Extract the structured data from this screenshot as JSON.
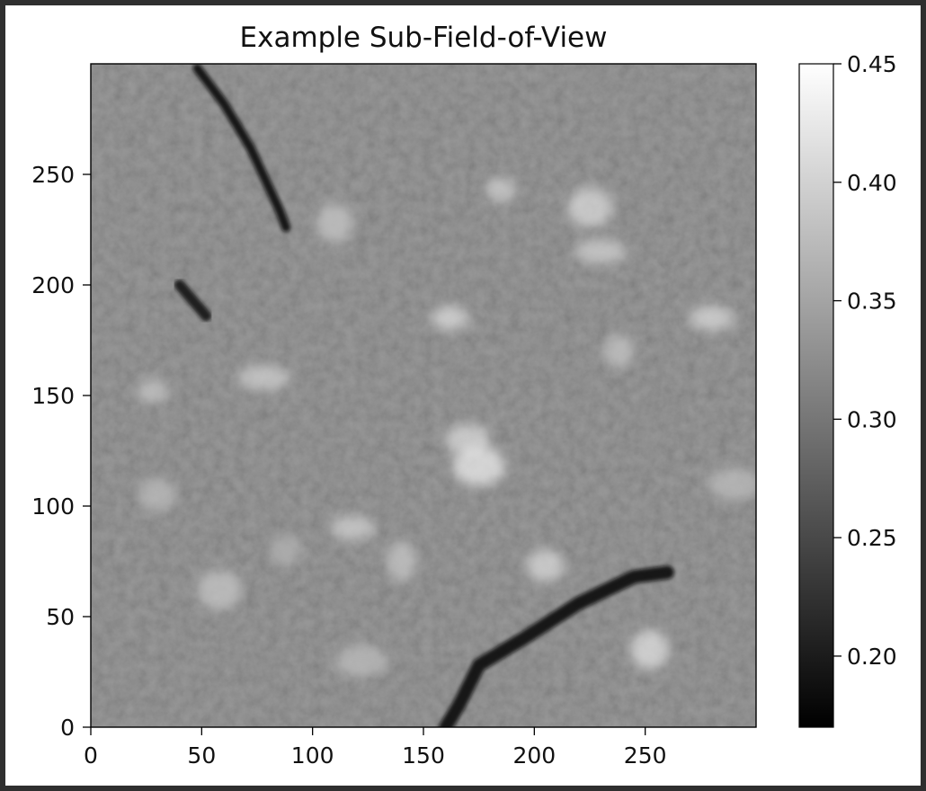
{
  "chart_data": {
    "type": "heatmap",
    "title": "Example Sub-Field-of-View",
    "xlabel": "",
    "ylabel": "",
    "xlim": [
      0,
      300
    ],
    "ylim": [
      0,
      300
    ],
    "x_ticks": [
      0,
      50,
      100,
      150,
      200,
      250
    ],
    "y_ticks": [
      0,
      50,
      100,
      150,
      200,
      250
    ],
    "colorbar": {
      "colormap": "gray",
      "range": [
        0.17,
        0.45
      ],
      "ticks": [
        0.2,
        0.25,
        0.3,
        0.35,
        0.4,
        0.45
      ],
      "tick_labels": [
        "0.20",
        "0.25",
        "0.30",
        "0.35",
        "0.40",
        "0.45"
      ]
    },
    "features": {
      "bright_points": [
        {
          "x": 28,
          "y": 152,
          "value": 0.39
        },
        {
          "x": 30,
          "y": 105,
          "value": 0.38
        },
        {
          "x": 58,
          "y": 62,
          "value": 0.39
        },
        {
          "x": 78,
          "y": 158,
          "value": 0.4
        },
        {
          "x": 88,
          "y": 80,
          "value": 0.37
        },
        {
          "x": 110,
          "y": 228,
          "value": 0.39
        },
        {
          "x": 118,
          "y": 90,
          "value": 0.4
        },
        {
          "x": 122,
          "y": 30,
          "value": 0.38
        },
        {
          "x": 140,
          "y": 75,
          "value": 0.39
        },
        {
          "x": 162,
          "y": 185,
          "value": 0.41
        },
        {
          "x": 170,
          "y": 130,
          "value": 0.41
        },
        {
          "x": 175,
          "y": 118,
          "value": 0.43
        },
        {
          "x": 185,
          "y": 243,
          "value": 0.4
        },
        {
          "x": 205,
          "y": 73,
          "value": 0.41
        },
        {
          "x": 225,
          "y": 235,
          "value": 0.41
        },
        {
          "x": 230,
          "y": 215,
          "value": 0.4
        },
        {
          "x": 238,
          "y": 170,
          "value": 0.39
        },
        {
          "x": 252,
          "y": 35,
          "value": 0.42
        },
        {
          "x": 280,
          "y": 185,
          "value": 0.41
        },
        {
          "x": 290,
          "y": 110,
          "value": 0.38
        }
      ],
      "dark_lanes": [
        {
          "value": 0.18,
          "points": [
            [
              48,
              298
            ],
            [
              60,
              282
            ],
            [
              72,
              262
            ],
            [
              85,
              234
            ],
            [
              88,
              226
            ]
          ]
        },
        {
          "value": 0.19,
          "points": [
            [
              40,
              200
            ],
            [
              52,
              186
            ]
          ]
        },
        {
          "value": 0.18,
          "points": [
            [
              160,
              0
            ],
            [
              166,
              10
            ],
            [
              175,
              28
            ],
            [
              195,
              40
            ],
            [
              220,
              56
            ],
            [
              245,
              68
            ],
            [
              260,
              70
            ]
          ]
        }
      ]
    }
  }
}
